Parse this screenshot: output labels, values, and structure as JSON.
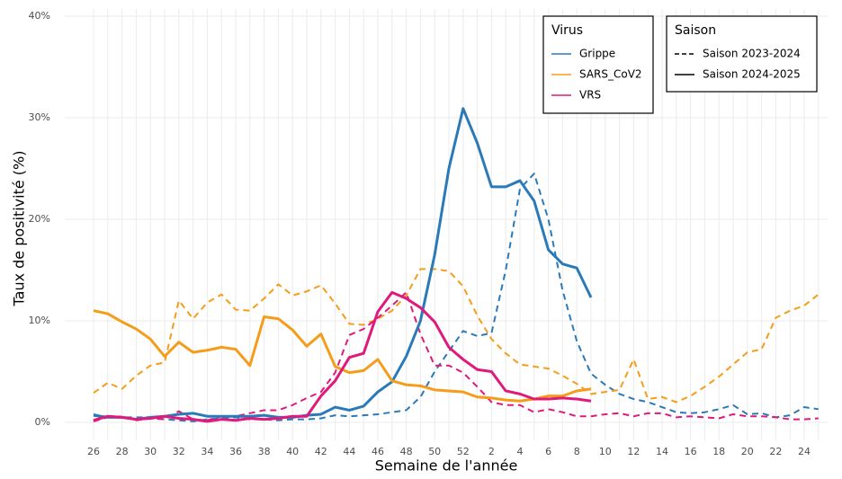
{
  "chart_data": {
    "type": "line",
    "y_label": "Taux de positivité (%)",
    "x_label": "Semaine de l'année",
    "categories": [
      26,
      null,
      28,
      null,
      30,
      null,
      32,
      null,
      34,
      null,
      36,
      null,
      38,
      null,
      40,
      null,
      42,
      null,
      44,
      null,
      46,
      null,
      48,
      null,
      50,
      null,
      52,
      null,
      2,
      null,
      4,
      null,
      6,
      null,
      8,
      null,
      10,
      null,
      12,
      null,
      14,
      null,
      16,
      null,
      18,
      null,
      20,
      null,
      22,
      null,
      24,
      null
    ],
    "ylim": [
      0,
      40
    ],
    "yticks": [
      {
        "value": 0,
        "label": "0%"
      },
      {
        "value": 10,
        "label": "10%"
      },
      {
        "value": 20,
        "label": "20%"
      },
      {
        "value": 30,
        "label": "30%"
      },
      {
        "value": 40,
        "label": "40%"
      }
    ],
    "grid": true,
    "legend_virus": {
      "title": "Virus",
      "items": [
        {
          "name": "Grippe",
          "color": "#2a7ab9"
        },
        {
          "name": "SARS_CoV2",
          "color": "#f59d1b"
        },
        {
          "name": "VRS",
          "color": "#e0197d"
        }
      ]
    },
    "legend_saison": {
      "title": "Saison",
      "items": [
        {
          "name": "Saison 2023-2024",
          "dashed": true
        },
        {
          "name": "Saison 2024-2025",
          "dashed": false
        }
      ]
    },
    "series": [
      {
        "color": "#2a7ab9",
        "dashed": true,
        "values": [
          0.8,
          0.5,
          0.5,
          0.5,
          0.5,
          0.3,
          0.2,
          0.1,
          0.3,
          0.4,
          0.5,
          0.3,
          0.3,
          0.2,
          0.3,
          0.3,
          0.4,
          0.7,
          0.6,
          0.7,
          0.8,
          1.0,
          1.2,
          2.5,
          5,
          7,
          9,
          8.5,
          8.8,
          15,
          23,
          24.5,
          20,
          13,
          8,
          4.8,
          3.7,
          2.8,
          2.3,
          2.0,
          1.5,
          1.0,
          0.9,
          1.0,
          1.3,
          1.7,
          0.8,
          0.9,
          0.5,
          0.7,
          1.5,
          1.3
        ]
      },
      {
        "color": "#f59d1b",
        "dashed": true,
        "values": [
          2.9,
          3.9,
          3.3,
          4.6,
          5.6,
          5.9,
          12,
          10.2,
          11.8,
          12.6,
          11.1,
          11.0,
          12.2,
          13.6,
          12.5,
          12.9,
          13.5,
          11.7,
          9.7,
          9.6,
          10.2,
          11,
          12.5,
          15.1,
          15.1,
          14.9,
          13.4,
          10.5,
          8.2,
          6.8,
          5.7,
          5.5,
          5.3,
          4.6,
          3.8,
          2.8,
          3.0,
          3.2,
          6.2,
          2.3,
          2.5,
          2.0,
          2.6,
          3.5,
          4.5,
          5.7,
          6.9,
          7.2,
          10.3,
          11.0,
          11.5,
          12.6
        ]
      },
      {
        "color": "#e0197d",
        "dashed": true,
        "values": [
          0.1,
          0.5,
          0.6,
          0.2,
          0.4,
          0.3,
          1.1,
          0.3,
          0.2,
          0.6,
          0.6,
          0.9,
          1.2,
          1.2,
          1.7,
          2.4,
          3.0,
          4.9,
          8.6,
          9.2,
          10.3,
          11.5,
          12.8,
          8.7,
          5.6,
          5.6,
          4.9,
          3.5,
          2.0,
          1.7,
          1.7,
          1.0,
          1.3,
          1.0,
          0.6,
          0.6,
          0.8,
          0.9,
          0.6,
          0.9,
          0.9,
          0.5,
          0.6,
          0.5,
          0.4,
          0.8,
          0.6,
          0.6,
          0.5,
          0.3,
          0.3,
          0.4
        ]
      },
      {
        "color": "#2a7ab9",
        "dashed": false,
        "values": [
          0.7,
          0.5,
          0.5,
          0.3,
          0.5,
          0.6,
          0.8,
          0.9,
          0.6,
          0.6,
          0.6,
          0.6,
          0.7,
          0.5,
          0.5,
          0.7,
          0.8,
          1.5,
          1.2,
          1.6,
          3.0,
          4.0,
          6.5,
          10,
          16.5,
          25,
          30.9,
          27.5,
          23.2,
          23.2,
          23.8,
          21.8,
          17,
          15.6,
          15.2,
          12.3,
          null,
          null,
          null,
          null,
          null,
          null,
          null,
          null,
          null,
          null,
          null,
          null,
          null,
          null,
          null,
          null
        ]
      },
      {
        "color": "#f59d1b",
        "dashed": false,
        "values": [
          11,
          10.7,
          9.9,
          9.2,
          8.2,
          6.5,
          7.9,
          6.9,
          7.1,
          7.4,
          7.2,
          5.6,
          10.4,
          10.2,
          9.1,
          7.5,
          8.7,
          5.5,
          4.9,
          5.1,
          6.2,
          4.1,
          3.7,
          3.6,
          3.2,
          3.1,
          3.0,
          2.5,
          2.4,
          2.2,
          2.1,
          2.3,
          2.6,
          2.6,
          3.1,
          3.3,
          null,
          null,
          null,
          null,
          null,
          null,
          null,
          null,
          null,
          null,
          null,
          null,
          null,
          null,
          null,
          null
        ]
      },
      {
        "color": "#e0197d",
        "dashed": false,
        "values": [
          0.2,
          0.6,
          0.5,
          0.3,
          0.4,
          0.6,
          0.4,
          0.3,
          0.1,
          0.3,
          0.2,
          0.4,
          0.3,
          0.4,
          0.6,
          0.6,
          2.6,
          4.1,
          6.4,
          6.8,
          10.9,
          12.8,
          12.2,
          11.3,
          9.9,
          7.4,
          6.2,
          5.2,
          5.0,
          3.1,
          2.8,
          2.3,
          2.3,
          2.4,
          2.3,
          2.1,
          null,
          null,
          null,
          null,
          null,
          null,
          null,
          null,
          null,
          null,
          null,
          null,
          null,
          null,
          null,
          null
        ]
      }
    ]
  }
}
